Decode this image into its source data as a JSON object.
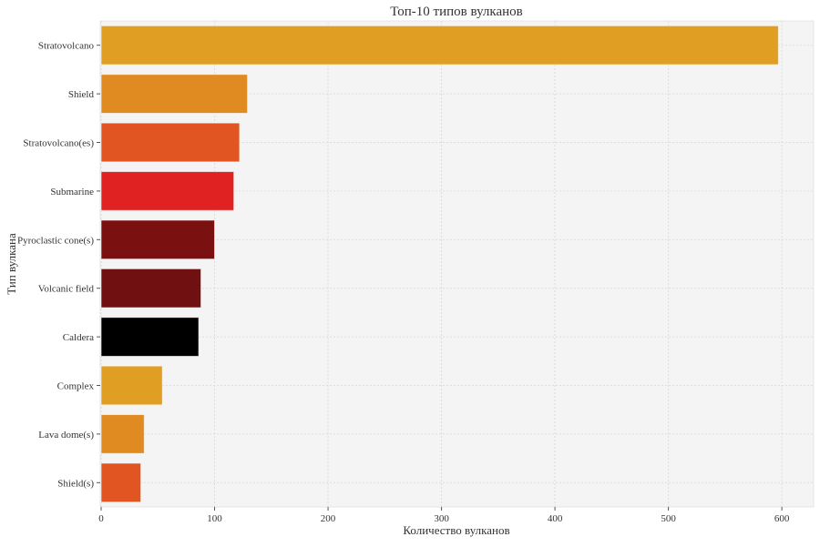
{
  "chart_data": {
    "type": "bar",
    "orientation": "horizontal",
    "title": "Топ-10 типов вулканов",
    "xlabel": "Количество вулканов",
    "ylabel": "Тип вулкана",
    "categories": [
      "Stratovolcano",
      "Shield",
      "Stratovolcano(es)",
      "Submarine",
      "Pyroclastic cone(s)",
      "Volcanic field",
      "Caldera",
      "Complex",
      "Lava dome(s)",
      "Shield(s)"
    ],
    "values": [
      597,
      129,
      122,
      117,
      100,
      88,
      86,
      54,
      38,
      35
    ],
    "colors": [
      "#E09E22",
      "#E08A22",
      "#E05522",
      "#E02222",
      "#7A1010",
      "#701010",
      "#000000",
      "#E09E22",
      "#E08A22",
      "#E05522"
    ],
    "xticks": [
      0,
      100,
      200,
      300,
      400,
      500,
      600
    ],
    "xlim": [
      0,
      628
    ],
    "grid": true
  }
}
